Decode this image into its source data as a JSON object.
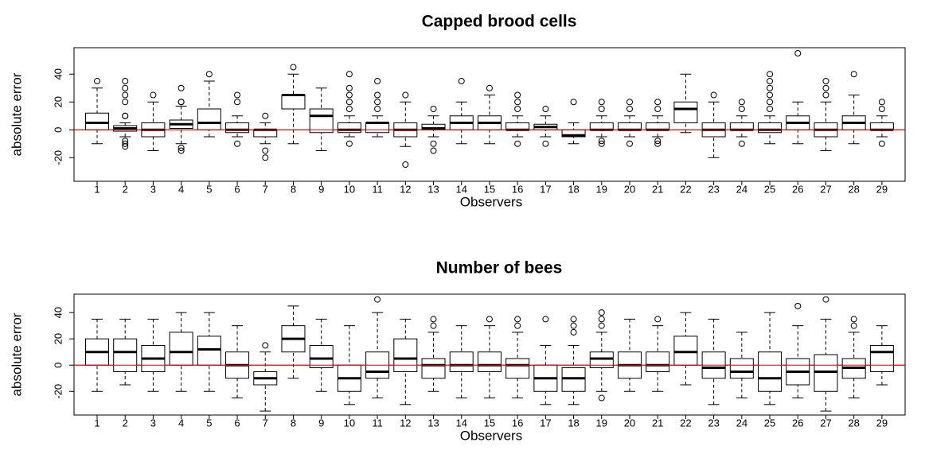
{
  "chart_data": [
    {
      "type": "box",
      "title": "Capped brood cells",
      "xlabel": "Observers",
      "ylabel": "absolute error",
      "categories": [
        "1",
        "2",
        "3",
        "4",
        "5",
        "6",
        "7",
        "8",
        "9",
        "10",
        "11",
        "12",
        "13",
        "14",
        "15",
        "16",
        "17",
        "18",
        "19",
        "20",
        "21",
        "22",
        "23",
        "24",
        "25",
        "26",
        "27",
        "28",
        "29"
      ],
      "low": [
        -10,
        -5,
        -15,
        -10,
        -5,
        -5,
        -10,
        -10,
        -15,
        -5,
        -5,
        -12,
        -5,
        -10,
        -10,
        -5,
        -5,
        -10,
        -5,
        -5,
        -5,
        -2,
        -20,
        -5,
        -10,
        -10,
        -15,
        -10,
        -5
      ],
      "q1": [
        0,
        -1,
        -5,
        1,
        0,
        -2,
        -5,
        15,
        -2,
        -2,
        -2,
        -5,
        0,
        0,
        0,
        0,
        0,
        -5,
        0,
        0,
        0,
        5,
        -5,
        0,
        -2,
        0,
        -5,
        0,
        0
      ],
      "median": [
        5,
        1,
        0,
        4,
        5,
        0,
        0,
        25,
        10,
        0,
        5,
        0,
        1,
        5,
        5,
        0,
        2,
        -4,
        0,
        0,
        0,
        15,
        0,
        0,
        0,
        5,
        0,
        5,
        0
      ],
      "q3": [
        12,
        3,
        5,
        7,
        15,
        5,
        0,
        25,
        15,
        5,
        5,
        5,
        4,
        10,
        10,
        5,
        4,
        0,
        5,
        5,
        5,
        20,
        5,
        5,
        5,
        10,
        5,
        10,
        5
      ],
      "high": [
        30,
        5,
        20,
        17,
        35,
        10,
        5,
        40,
        30,
        10,
        10,
        20,
        10,
        20,
        25,
        10,
        10,
        5,
        10,
        10,
        10,
        40,
        20,
        10,
        10,
        20,
        20,
        25,
        10
      ],
      "outliers": [
        [
          35
        ],
        [
          10,
          10,
          20,
          25,
          30,
          35,
          -8,
          -10,
          -12
        ],
        [
          25
        ],
        [
          20,
          20,
          30,
          -13,
          -15
        ],
        [
          40
        ],
        [
          20,
          25,
          -10
        ],
        [
          10,
          -15,
          -20
        ],
        [
          45
        ],
        [],
        [
          15,
          20,
          25,
          30,
          40,
          -10
        ],
        [
          15,
          20,
          25,
          35
        ],
        [
          25,
          -25
        ],
        [
          15,
          -10,
          -15
        ],
        [
          35
        ],
        [
          30
        ],
        [
          15,
          20,
          25,
          -10
        ],
        [
          15,
          -10
        ],
        [
          20
        ],
        [
          15,
          20,
          -8,
          -10
        ],
        [
          15,
          20,
          -10
        ],
        [
          15,
          20,
          -8,
          -10
        ],
        [],
        [
          25
        ],
        [
          15,
          20,
          -10
        ],
        [
          15,
          20,
          25,
          30,
          35,
          40
        ],
        [
          55
        ],
        [
          25,
          30,
          35
        ],
        [
          40
        ],
        [
          15,
          20,
          -10
        ]
      ],
      "ylim": [
        -37,
        59
      ],
      "yticks": [
        -20,
        0,
        20,
        40
      ],
      "hline": 0,
      "hline_color": "#e00000",
      "box_color": "#000000"
    },
    {
      "type": "box",
      "title": "Number of bees",
      "xlabel": "Observers",
      "ylabel": "absolute error",
      "categories": [
        "1",
        "2",
        "3",
        "4",
        "5",
        "6",
        "7",
        "8",
        "9",
        "10",
        "11",
        "12",
        "13",
        "14",
        "15",
        "16",
        "17",
        "18",
        "19",
        "20",
        "21",
        "22",
        "23",
        "24",
        "25",
        "26",
        "27",
        "28",
        "29"
      ],
      "low": [
        -20,
        -15,
        -20,
        -20,
        -20,
        -25,
        -35,
        -10,
        -20,
        -30,
        -25,
        -30,
        -20,
        -25,
        -25,
        -25,
        -30,
        -30,
        -20,
        -20,
        -20,
        -15,
        -30,
        -25,
        -30,
        -25,
        -35,
        -25,
        -15
      ],
      "q1": [
        0,
        -5,
        -5,
        0,
        0,
        -10,
        -15,
        10,
        -2,
        -20,
        -10,
        -5,
        -10,
        -5,
        -5,
        -10,
        -20,
        -20,
        -2,
        -10,
        -5,
        0,
        -10,
        -10,
        -20,
        -15,
        -20,
        -10,
        -5
      ],
      "median": [
        10,
        10,
        5,
        10,
        12,
        0,
        -10,
        20,
        5,
        -10,
        -5,
        5,
        0,
        0,
        0,
        0,
        -10,
        -10,
        5,
        0,
        0,
        10,
        -2,
        -5,
        -10,
        -5,
        -5,
        -2,
        10
      ],
      "q3": [
        20,
        20,
        15,
        25,
        22,
        10,
        -5,
        30,
        15,
        0,
        10,
        20,
        5,
        10,
        10,
        5,
        0,
        -2,
        10,
        10,
        10,
        22,
        10,
        5,
        10,
        5,
        8,
        5,
        15
      ],
      "high": [
        35,
        35,
        35,
        40,
        40,
        30,
        10,
        45,
        35,
        30,
        40,
        35,
        25,
        30,
        30,
        25,
        15,
        15,
        25,
        35,
        30,
        40,
        35,
        25,
        40,
        30,
        35,
        25,
        30
      ],
      "outliers": [
        [],
        [],
        [],
        [],
        [],
        [],
        [
          15
        ],
        [],
        [],
        [],
        [
          50
        ],
        [],
        [
          30,
          35
        ],
        [],
        [
          35
        ],
        [
          30,
          35
        ],
        [
          35
        ],
        [
          25,
          30,
          35
        ],
        [
          30,
          35,
          40,
          -25
        ],
        [],
        [
          35
        ],
        [],
        [],
        [],
        [],
        [
          45
        ],
        [
          50
        ],
        [
          30,
          35
        ],
        []
      ],
      "ylim": [
        -38,
        54
      ],
      "yticks": [
        -20,
        0,
        20,
        40
      ],
      "hline": 0,
      "hline_color": "#e00000",
      "box_color": "#000000"
    }
  ]
}
